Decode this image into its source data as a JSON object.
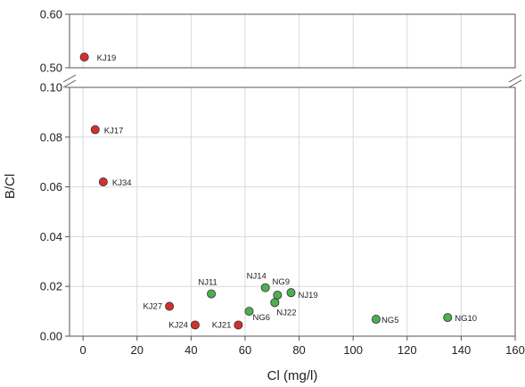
{
  "chart_data": {
    "type": "scatter",
    "title": "",
    "xlabel": "Cl (mg/l)",
    "ylabel": "B/Cl",
    "xlim": [
      -5,
      160
    ],
    "x_ticks": [
      "0",
      "20",
      "40",
      "60",
      "80",
      "100",
      "120",
      "140",
      "160"
    ],
    "y_break": true,
    "upper_ylim": [
      0.5,
      0.6
    ],
    "upper_y_ticks": [
      "0.50",
      "0.60"
    ],
    "lower_ylim": [
      0,
      0.1
    ],
    "lower_y_ticks": [
      "0.00",
      "0.02",
      "0.04",
      "0.06",
      "0.08",
      "0.10"
    ],
    "grid": true,
    "series": [
      {
        "color": "#d32f2f",
        "points": [
          {
            "label": "KJ19",
            "x": 0.5,
            "y": 0.52
          },
          {
            "label": "KJ17",
            "x": 4.5,
            "y": 0.083
          },
          {
            "label": "KJ34",
            "x": 7.5,
            "y": 0.062
          },
          {
            "label": "KJ27",
            "x": 32,
            "y": 0.012
          },
          {
            "label": "KJ24",
            "x": 41.5,
            "y": 0.0045
          },
          {
            "label": "KJ21",
            "x": 57.5,
            "y": 0.0045
          }
        ]
      },
      {
        "color": "#4caf50",
        "points": [
          {
            "label": "NJ11",
            "x": 47.5,
            "y": 0.017
          },
          {
            "label": "NJ14",
            "x": 67.5,
            "y": 0.0195
          },
          {
            "label": "NG9",
            "x": 72,
            "y": 0.0165
          },
          {
            "label": "NJ19",
            "x": 77,
            "y": 0.0175
          },
          {
            "label": "NJ22",
            "x": 71,
            "y": 0.0135
          },
          {
            "label": "NG6",
            "x": 61.5,
            "y": 0.01
          },
          {
            "label": "NG5",
            "x": 108.5,
            "y": 0.0068
          },
          {
            "label": "NG10",
            "x": 135,
            "y": 0.0075
          }
        ]
      }
    ]
  }
}
